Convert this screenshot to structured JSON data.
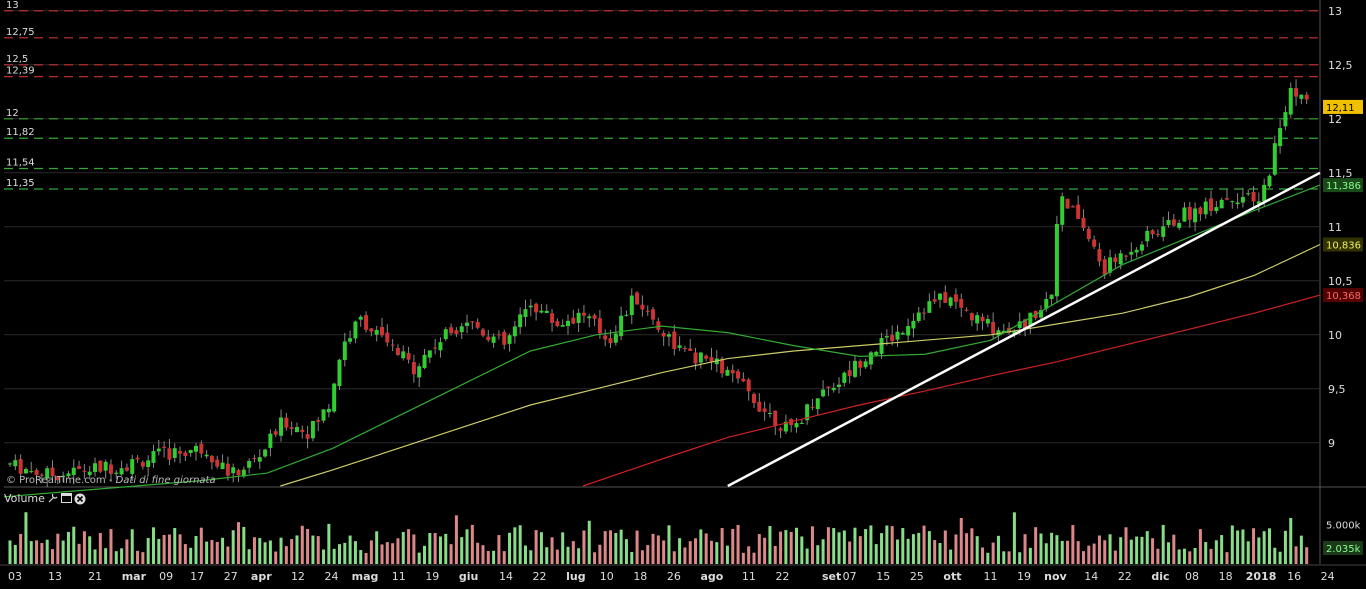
{
  "watermark": {
    "brand": "© ProRealTime.com",
    "note": "Dati di fine giornata"
  },
  "volume_panel": {
    "label": "Volume",
    "icons": [
      "wrench-icon",
      "window-icon",
      "close-icon"
    ]
  },
  "colors": {
    "background": "#000000",
    "grid": "#2a2a2a",
    "candle_up": "#33cc33",
    "candle_down": "#cc3333",
    "ma_short": "#33aa33",
    "ma_medium": "#cccc66",
    "ma_long": "#cc2222",
    "trendline": "#ffffff",
    "resistance_line": "#cc3333",
    "support_line": "#33aa33",
    "vol_up": "#88dd88",
    "vol_down": "#dd8888"
  },
  "chart_data": {
    "type": "candlestick",
    "price_axis": {
      "ticks": [
        "13",
        "12,5",
        "12",
        "11,5",
        "11",
        "10,5",
        "10",
        "9,5",
        "9"
      ],
      "tick_values": [
        13,
        12.5,
        12,
        11.5,
        11,
        10.5,
        10,
        9.5,
        9
      ],
      "ylim": [
        8.6,
        13.1
      ]
    },
    "horizontal_levels": [
      {
        "label": "13",
        "value": 13.0,
        "kind": "resistance"
      },
      {
        "label": "12,75",
        "value": 12.75,
        "kind": "resistance"
      },
      {
        "label": "12,5",
        "value": 12.5,
        "kind": "resistance"
      },
      {
        "label": "12,39",
        "value": 12.39,
        "kind": "resistance"
      },
      {
        "label": "12",
        "value": 12.0,
        "kind": "support"
      },
      {
        "label": "11,82",
        "value": 11.82,
        "kind": "support"
      },
      {
        "label": "11,54",
        "value": 11.54,
        "kind": "support"
      },
      {
        "label": "11,35",
        "value": 11.35,
        "kind": "support"
      }
    ],
    "last_values": [
      {
        "label": "12,11",
        "value": 12.11,
        "kind": "price"
      },
      {
        "label": "11,386",
        "value": 11.386,
        "kind": "ma_short"
      },
      {
        "label": "10,836",
        "value": 10.836,
        "kind": "ma_medium"
      },
      {
        "label": "10,368",
        "value": 10.368,
        "kind": "ma_long"
      }
    ],
    "x_axis_labels": [
      "03",
      "13",
      "21",
      "mar",
      "09",
      "17",
      "27",
      "apr",
      "12",
      "24",
      "mag",
      "11",
      "19",
      "giu",
      "14",
      "22",
      "lug",
      "10",
      "18",
      "26",
      "ago",
      "11",
      "22",
      "set",
      "07",
      "15",
      "25",
      "ott",
      "11",
      "19",
      "nov",
      "14",
      "22",
      "dic",
      "08",
      "18",
      "2018",
      "16",
      "24"
    ],
    "x_axis_positions": [
      0.0,
      0.031,
      0.062,
      0.088,
      0.117,
      0.141,
      0.167,
      0.188,
      0.219,
      0.245,
      0.266,
      0.297,
      0.323,
      0.349,
      0.38,
      0.406,
      0.432,
      0.458,
      0.484,
      0.51,
      0.536,
      0.568,
      0.594,
      0.63,
      0.646,
      0.672,
      0.698,
      0.724,
      0.755,
      0.781,
      0.802,
      0.833,
      0.859,
      0.885,
      0.911,
      0.937,
      0.958,
      0.99,
      1.016
    ],
    "trendline": {
      "x": [
        0.55,
        1.0
      ],
      "y": [
        8.6,
        11.5
      ]
    },
    "price_path": {
      "x": [
        0.0,
        0.03,
        0.06,
        0.09,
        0.12,
        0.15,
        0.17,
        0.19,
        0.21,
        0.23,
        0.245,
        0.255,
        0.27,
        0.29,
        0.31,
        0.33,
        0.35,
        0.38,
        0.4,
        0.42,
        0.44,
        0.46,
        0.48,
        0.5,
        0.52,
        0.54,
        0.56,
        0.58,
        0.6,
        0.62,
        0.64,
        0.66,
        0.68,
        0.7,
        0.72,
        0.74,
        0.76,
        0.78,
        0.8,
        0.805,
        0.82,
        0.84,
        0.86,
        0.88,
        0.9,
        0.92,
        0.94,
        0.96,
        0.975,
        0.985,
        1.0
      ],
      "y": [
        8.8,
        8.7,
        8.75,
        8.8,
        8.9,
        8.95,
        8.7,
        8.85,
        9.2,
        9.1,
        9.35,
        9.9,
        10.15,
        9.9,
        9.7,
        9.95,
        10.15,
        9.9,
        10.3,
        10.1,
        10.2,
        9.95,
        10.35,
        10.05,
        9.8,
        9.75,
        9.55,
        9.3,
        9.1,
        9.45,
        9.6,
        9.85,
        10.0,
        10.25,
        10.35,
        10.15,
        10.05,
        10.1,
        10.4,
        11.25,
        11.1,
        10.6,
        10.8,
        10.95,
        11.1,
        11.2,
        11.3,
        11.2,
        11.9,
        12.3,
        12.1
      ]
    },
    "ma_short_path": {
      "x": [
        0.0,
        0.05,
        0.1,
        0.15,
        0.2,
        0.25,
        0.3,
        0.35,
        0.4,
        0.45,
        0.5,
        0.55,
        0.6,
        0.65,
        0.7,
        0.75,
        0.8,
        0.85,
        0.9,
        0.95,
        1.0
      ],
      "y": [
        8.5,
        8.55,
        8.6,
        8.65,
        8.72,
        8.95,
        9.25,
        9.55,
        9.85,
        10.0,
        10.08,
        10.02,
        9.9,
        9.8,
        9.82,
        9.95,
        10.3,
        10.65,
        10.9,
        11.15,
        11.386
      ]
    },
    "ma_medium_path": {
      "x": [
        0.21,
        0.25,
        0.3,
        0.35,
        0.4,
        0.45,
        0.5,
        0.55,
        0.6,
        0.65,
        0.7,
        0.75,
        0.8,
        0.85,
        0.9,
        0.95,
        1.0
      ],
      "y": [
        8.6,
        8.75,
        8.95,
        9.15,
        9.35,
        9.5,
        9.65,
        9.78,
        9.85,
        9.9,
        9.95,
        10.0,
        10.1,
        10.2,
        10.35,
        10.55,
        10.836
      ]
    },
    "ma_long_path": {
      "x": [
        0.44,
        0.5,
        0.55,
        0.6,
        0.65,
        0.7,
        0.75,
        0.8,
        0.85,
        0.9,
        0.95,
        1.0
      ],
      "y": [
        8.6,
        8.85,
        9.05,
        9.2,
        9.35,
        9.48,
        9.62,
        9.75,
        9.9,
        10.05,
        10.2,
        10.368
      ]
    },
    "volume_axis": {
      "ticks": [
        "5.000k"
      ],
      "last_value_label": "2.035k",
      "ylim": [
        0,
        7.5
      ]
    }
  }
}
